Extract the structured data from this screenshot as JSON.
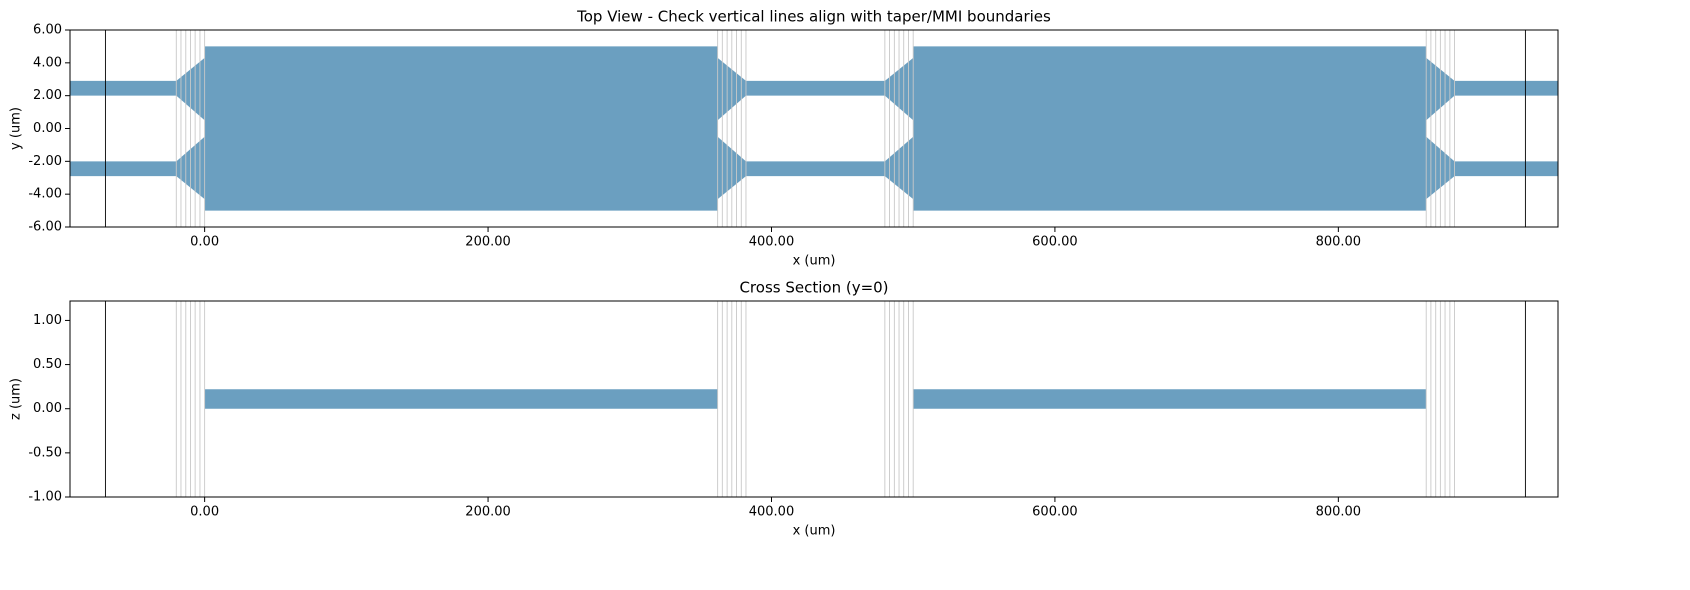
{
  "chart_data": [
    {
      "type": "polygon",
      "title": "Top View - Check vertical lines align with taper/MMI boundaries",
      "xlabel": "x (um)",
      "ylabel": "y (um)",
      "xlim": [
        -95,
        955
      ],
      "ylim": [
        -6,
        6
      ],
      "xticks": [
        {
          "value": 0,
          "label": "0.00"
        },
        {
          "value": 200,
          "label": "200.00"
        },
        {
          "value": 400,
          "label": "400.00"
        },
        {
          "value": 600,
          "label": "600.00"
        },
        {
          "value": 800,
          "label": "800.00"
        }
      ],
      "yticks": [
        {
          "value": -6,
          "label": "-6.00"
        },
        {
          "value": -4,
          "label": "-4.00"
        },
        {
          "value": -2,
          "label": "-2.00"
        },
        {
          "value": 0,
          "label": "0.00"
        },
        {
          "value": 2,
          "label": "2.00"
        },
        {
          "value": 4,
          "label": "4.00"
        },
        {
          "value": 6,
          "label": "6.00"
        }
      ],
      "color": "#689dbf",
      "shapes": [
        {
          "x": [
            -95,
            -20,
            -20,
            -95
          ],
          "y": [
            2,
            2,
            2.9,
            2.9
          ]
        },
        {
          "x": [
            -95,
            -20,
            -20,
            -95
          ],
          "y": [
            -2.9,
            -2.9,
            -2,
            -2
          ]
        },
        {
          "x": [
            -20,
            0,
            0,
            -20
          ],
          "y": [
            2,
            0.5,
            4.3,
            2.9
          ]
        },
        {
          "x": [
            -20,
            0,
            0,
            -20
          ],
          "y": [
            -2.9,
            -4.3,
            -0.5,
            -2
          ]
        },
        {
          "x": [
            0,
            362,
            362,
            0
          ],
          "y": [
            -5,
            -5,
            5,
            5
          ]
        },
        {
          "x": [
            362,
            382,
            382,
            362
          ],
          "y": [
            0.5,
            2,
            2.9,
            4.3
          ]
        },
        {
          "x": [
            362,
            382,
            382,
            362
          ],
          "y": [
            -4.3,
            -2.9,
            -2,
            -0.5
          ]
        },
        {
          "x": [
            382,
            480,
            480,
            382
          ],
          "y": [
            2,
            2,
            2.9,
            2.9
          ]
        },
        {
          "x": [
            382,
            480,
            480,
            382
          ],
          "y": [
            -2.9,
            -2.9,
            -2,
            -2
          ]
        },
        {
          "x": [
            480,
            500,
            500,
            480
          ],
          "y": [
            2,
            0.5,
            4.3,
            2.9
          ]
        },
        {
          "x": [
            480,
            500,
            500,
            480
          ],
          "y": [
            -2.9,
            -4.3,
            -0.5,
            -2
          ]
        },
        {
          "x": [
            500,
            862,
            862,
            500
          ],
          "y": [
            -5,
            -5,
            5,
            5
          ]
        },
        {
          "x": [
            862,
            882,
            882,
            862
          ],
          "y": [
            0.5,
            2,
            2.9,
            4.3
          ]
        },
        {
          "x": [
            862,
            882,
            882,
            862
          ],
          "y": [
            -4.3,
            -2.9,
            -2,
            -0.5
          ]
        },
        {
          "x": [
            882,
            955,
            955,
            882
          ],
          "y": [
            2,
            2,
            2.9,
            2.9
          ]
        },
        {
          "x": [
            882,
            955,
            955,
            882
          ],
          "y": [
            -2.9,
            -2.9,
            -2,
            -2
          ]
        }
      ],
      "vlines": [
        {
          "color": "#c8c8c8",
          "x": [
            -20,
            -16.7,
            -13.3,
            -10,
            -6.7,
            -3.3,
            0,
            362,
            365.3,
            368.7,
            372,
            375.3,
            378.7,
            382,
            480,
            483.3,
            486.7,
            490,
            493.3,
            496.7,
            500,
            862,
            865.3,
            868.7,
            872,
            875.3,
            878.7,
            882
          ]
        },
        {
          "color": "#000000",
          "x": [
            -70,
            932
          ]
        }
      ]
    },
    {
      "type": "polygon",
      "title": "Cross Section (y=0)",
      "xlabel": "x (um)",
      "ylabel": "z (um)",
      "xlim": [
        -95,
        955
      ],
      "ylim": [
        -1,
        1.22
      ],
      "xticks": [
        {
          "value": 0,
          "label": "0.00"
        },
        {
          "value": 200,
          "label": "200.00"
        },
        {
          "value": 400,
          "label": "400.00"
        },
        {
          "value": 600,
          "label": "600.00"
        },
        {
          "value": 800,
          "label": "800.00"
        }
      ],
      "yticks": [
        {
          "value": -1,
          "label": "-1.00"
        },
        {
          "value": -0.5,
          "label": "-0.50"
        },
        {
          "value": 0,
          "label": "0.00"
        },
        {
          "value": 0.5,
          "label": "0.50"
        },
        {
          "value": 1,
          "label": "1.00"
        }
      ],
      "color": "#689dbf",
      "shapes": [
        {
          "x": [
            0,
            362,
            362,
            0
          ],
          "y": [
            0,
            0,
            0.22,
            0.22
          ]
        },
        {
          "x": [
            500,
            862,
            862,
            500
          ],
          "y": [
            0,
            0,
            0.22,
            0.22
          ]
        }
      ],
      "vlines": [
        {
          "color": "#c8c8c8",
          "x": [
            -20,
            -16.7,
            -13.3,
            -10,
            -6.7,
            -3.3,
            0,
            362,
            365.3,
            368.7,
            372,
            375.3,
            378.7,
            382,
            480,
            483.3,
            486.7,
            490,
            493.3,
            496.7,
            500,
            862,
            865.3,
            868.7,
            872,
            875.3,
            878.7,
            882
          ]
        },
        {
          "color": "#000000",
          "x": [
            -70,
            932
          ]
        }
      ]
    }
  ]
}
